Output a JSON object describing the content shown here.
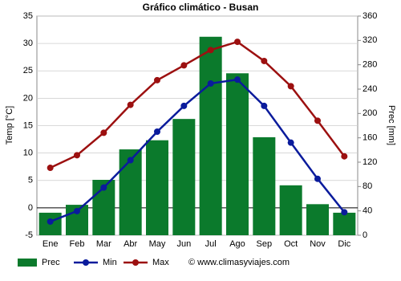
{
  "chart_data": {
    "type": "combo",
    "title": "Gráfico climático - Busan",
    "y_label": "Temp [°C]",
    "y2_label": "Prec [mm]",
    "categories": [
      "Ene",
      "Feb",
      "Mar",
      "Abr",
      "May",
      "Jun",
      "Jul",
      "Ago",
      "Sep",
      "Oct",
      "Nov",
      "Dic"
    ],
    "series": [
      {
        "name": "Prec",
        "type": "bar",
        "axis": "y2",
        "color": "#0b7a2c",
        "values": [
          37,
          50,
          91,
          141,
          156,
          191,
          326,
          266,
          161,
          82,
          51,
          37
        ]
      },
      {
        "name": "Min",
        "type": "line",
        "color": "#0a1b9c",
        "values": [
          -2.5,
          -0.6,
          3.7,
          8.7,
          13.9,
          18.6,
          22.7,
          23.4,
          18.6,
          11.9,
          5.3,
          -0.8
        ]
      },
      {
        "name": "Max",
        "type": "line",
        "color": "#9c1010",
        "values": [
          7.3,
          9.6,
          13.7,
          18.8,
          23.3,
          26.0,
          28.8,
          30.3,
          26.8,
          22.2,
          15.9,
          9.4
        ]
      }
    ],
    "ylim": [
      -5,
      35
    ],
    "yticks": [
      -5,
      0,
      5,
      10,
      15,
      20,
      25,
      30,
      35
    ],
    "y2lim": [
      0,
      360
    ],
    "y2ticks": [
      0,
      40,
      80,
      120,
      160,
      200,
      240,
      280,
      320,
      360
    ],
    "grid": true,
    "legend": "bottom",
    "watermark": "© www.climasyviajes.com"
  }
}
